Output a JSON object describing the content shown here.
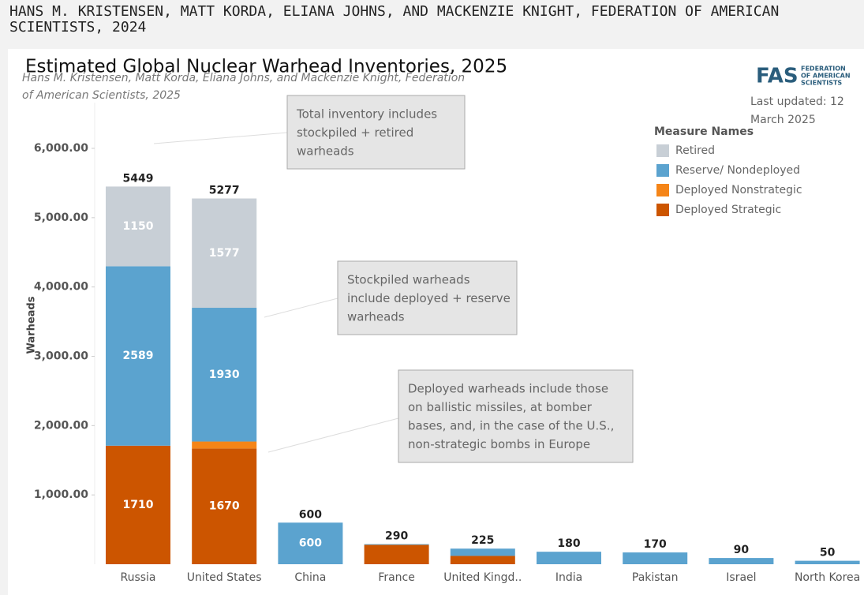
{
  "header": {
    "text_lines": [
      "HANS M. KRISTENSEN, MATT KORDA, ELIANA JOHNS, AND MACKENZIE KNIGHT, FEDERATION OF AMERICAN",
      "SCIENTISTS, 2024"
    ]
  },
  "logo": {
    "mark": "FAS",
    "lines": [
      "FEDERATION",
      "OF AMERICAN",
      "SCIENTISTS"
    ]
  },
  "last_updated": [
    "Last updated: 12",
    "March 2025"
  ],
  "annotations": [
    {
      "lines": [
        "Total inventory includes",
        "stockpiled + retired",
        "warheads"
      ]
    },
    {
      "lines": [
        "Stockpiled warheads",
        "include deployed + reserve",
        "warheads"
      ]
    },
    {
      "lines": [
        "Deployed warheads include those",
        "on ballistic missiles, at bomber",
        "bases, and, in the case of the U.S.,",
        "non-strategic bombs in Europe"
      ]
    }
  ],
  "chart_data": {
    "type": "stacked_bar",
    "title": "Estimated Global Nuclear Warhead Inventories, 2025",
    "subtitle_lines": [
      "Hans M. Kristensen, Matt Korda, Eliana Johns, and Mackenzie Knight, Federation",
      "of American Scientists, 2025"
    ],
    "y_label": "Warheads",
    "legend_title": "Measure Names",
    "categories": [
      "Russia",
      "United States",
      "China",
      "France",
      "United Kingd..",
      "India",
      "Pakistan",
      "Israel",
      "North Korea"
    ],
    "series": [
      {
        "name": "Deployed Strategic",
        "color": "#cc5500",
        "values": [
          1710,
          1670,
          null,
          280,
          120,
          null,
          null,
          null,
          null
        ]
      },
      {
        "name": "Deployed Nonstrategic",
        "color": "#f58518",
        "values": [
          null,
          100,
          null,
          null,
          null,
          null,
          null,
          null,
          null
        ]
      },
      {
        "name": "Reserve/ Nondeployed",
        "color": "#5ba3cf",
        "values": [
          2589,
          1930,
          600,
          10,
          105,
          180,
          170,
          90,
          50
        ]
      },
      {
        "name": "Retired",
        "color": "#c8cfd6",
        "values": [
          1150,
          1577,
          null,
          null,
          null,
          null,
          null,
          null,
          null
        ]
      }
    ],
    "totals": [
      5449,
      5277,
      600,
      290,
      225,
      180,
      170,
      90,
      50
    ],
    "ylim": [
      0,
      6600
    ],
    "yticks": [
      {
        "value": 1000,
        "label": "1,000.00"
      },
      {
        "value": 2000,
        "label": "2,000.00"
      },
      {
        "value": 3000,
        "label": "3,000.00"
      },
      {
        "value": 4000,
        "label": "4,000.00"
      },
      {
        "value": 5000,
        "label": "5,000.00"
      },
      {
        "value": 6000,
        "label": "6,000.00"
      }
    ],
    "grid": false
  }
}
